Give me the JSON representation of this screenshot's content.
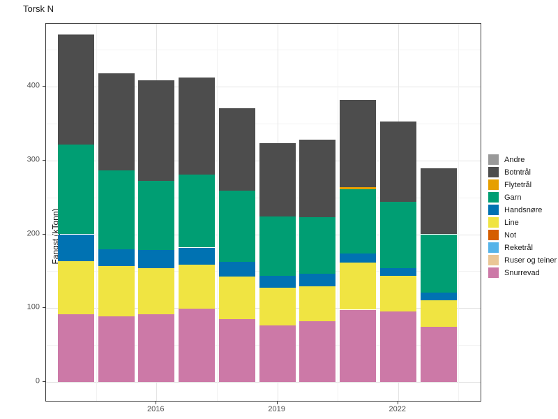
{
  "title": "Torsk N",
  "axes": {
    "y_label": "Fangst (kTonn)",
    "y_tick_labels": [
      "0",
      "100",
      "200",
      "300",
      "400"
    ],
    "x_tick_labels": [
      "2016",
      "2019",
      "2022"
    ]
  },
  "chart_data": {
    "type": "bar",
    "stacked": true,
    "title": "Torsk N",
    "xlabel": "",
    "ylabel": "Fangst (kTonn)",
    "x": [
      2014,
      2015,
      2016,
      2017,
      2018,
      2019,
      2020,
      2021,
      2022,
      2023
    ],
    "x_major_ticks": [
      2016,
      2019,
      2022
    ],
    "x_minor_gridlines": [
      2014.5,
      2017.5,
      2020.5,
      2023.5
    ],
    "y_major_ticks": [
      0,
      100,
      200,
      300,
      400
    ],
    "y_minor_gridlines": [
      50,
      150,
      250,
      350,
      450
    ],
    "ylim": [
      0,
      485
    ],
    "grid": true,
    "legend_position": "right",
    "stack_order_bottom_to_top": [
      "Snurrevad",
      "Ruser og teiner",
      "Reketrål",
      "Not",
      "Line",
      "Handsnøre",
      "Garn",
      "Flytetrål",
      "Botntrål",
      "Andre"
    ],
    "series": [
      {
        "name": "Andre",
        "color": "#999999",
        "values": [
          1,
          0,
          0,
          0,
          0,
          0,
          0,
          0,
          0,
          0
        ]
      },
      {
        "name": "Botntrål",
        "color": "#4D4D4D",
        "values": [
          149,
          132,
          136,
          131,
          112,
          99,
          105,
          118,
          109,
          89
        ]
      },
      {
        "name": "Flytetrål",
        "color": "#E69F00",
        "values": [
          0,
          0,
          0,
          0,
          0,
          0,
          0,
          3,
          0,
          0
        ]
      },
      {
        "name": "Garn",
        "color": "#009E73",
        "values": [
          121,
          106,
          93,
          99,
          96,
          80,
          76,
          87,
          90,
          79
        ]
      },
      {
        "name": "Handsnøre",
        "color": "#0072B2",
        "values": [
          36,
          23,
          25,
          23,
          20,
          16,
          17,
          12,
          10,
          10
        ]
      },
      {
        "name": "Line",
        "color": "#F0E442",
        "values": [
          72,
          68,
          62,
          60,
          58,
          51,
          48,
          64,
          48,
          36
        ]
      },
      {
        "name": "Not",
        "color": "#D55E00",
        "values": [
          0,
          0,
          0,
          0,
          0,
          0,
          0,
          0,
          0,
          0
        ]
      },
      {
        "name": "Reketrål",
        "color": "#56B4E9",
        "values": [
          0,
          0,
          0,
          0,
          0,
          0,
          0,
          0,
          0,
          0
        ]
      },
      {
        "name": "Ruser og teiner",
        "color": "#EAC696",
        "values": [
          0,
          0,
          0,
          0,
          0,
          0,
          0,
          0,
          0,
          0
        ]
      },
      {
        "name": "Snurrevad",
        "color": "#CC79A7",
        "values": [
          92,
          89,
          92,
          99,
          85,
          77,
          82,
          98,
          96,
          75
        ]
      }
    ],
    "totals": [
      471,
      418,
      408,
      412,
      371,
      323,
      328,
      382,
      353,
      289
    ]
  },
  "style_colors": {
    "panel_border": "#3c3c3c",
    "grid_major": "#e4e4e4",
    "grid_minor": "#f2f2f2",
    "axis_text": "#4d4d4d",
    "title_text": "#1a1a1a"
  }
}
